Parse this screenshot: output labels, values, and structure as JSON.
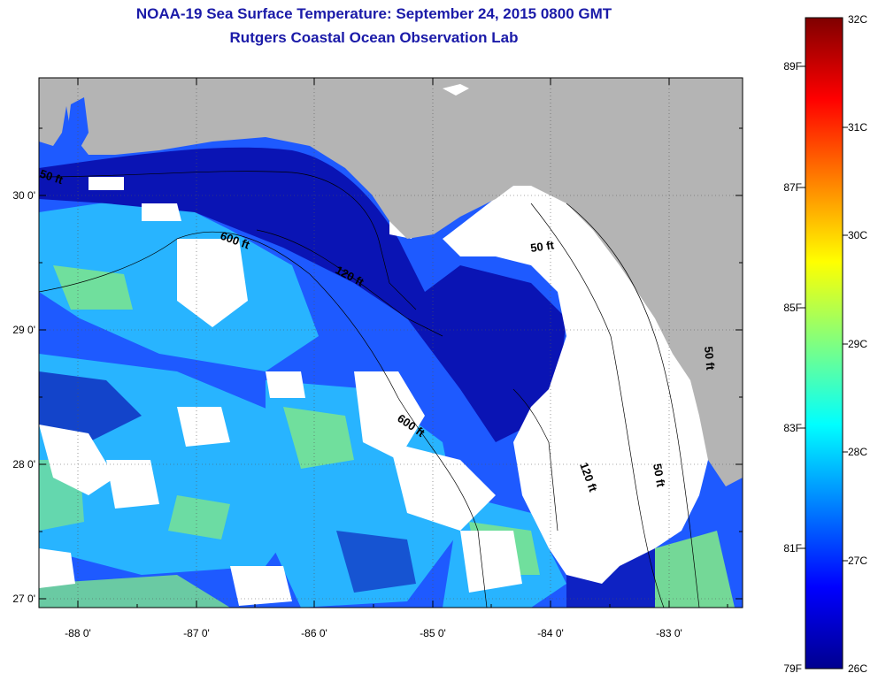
{
  "title": "NOAA-19 Sea Surface Temperature:  September 24, 2015 0800 GMT",
  "subtitle": "Rutgers Coastal Ocean Observation Lab",
  "lat_labels": [
    "30 0'",
    "29 0'",
    "28 0'",
    "27 0'"
  ],
  "lon_labels": [
    "-88 0'",
    "-87 0'",
    "-86 0'",
    "-85 0'",
    "-84 0'",
    "-83 0'"
  ],
  "contour_labels": [
    "50 ft",
    "600 ft",
    "120 ft",
    "50 ft",
    "120 ft",
    "50 ft",
    "600 ft",
    "50 ft"
  ],
  "colorbar": {
    "celsius": [
      "32C",
      "31C",
      "30C",
      "29C",
      "28C",
      "27C",
      "26C"
    ],
    "fahrenheit": [
      "89F",
      "87F",
      "85F",
      "83F",
      "81F",
      "79F"
    ],
    "gradient": [
      "#7f0000",
      "#ff0000",
      "#ff8000",
      "#ffff00",
      "#80ff80",
      "#00ffff",
      "#0080ff",
      "#0000ff",
      "#00008f"
    ]
  },
  "colors": {
    "land": "#b4b4b4",
    "cloud": "#ffffff",
    "deep_blue": "#0a14b4",
    "mid_blue": "#1e5aff",
    "cyan": "#28b4ff",
    "green": "#7de68c"
  }
}
